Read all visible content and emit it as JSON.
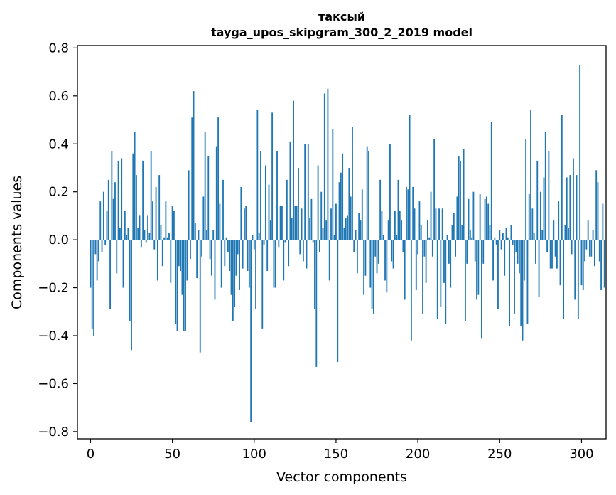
{
  "chart_data": {
    "type": "bar",
    "title": "таксый",
    "subtitle": "tayga_upos_skipgram_300_2_2019 model",
    "xlabel": "Vector components",
    "ylabel": "Components values",
    "xlim": [
      -8,
      315
    ],
    "ylim": [
      -0.83,
      0.81
    ],
    "xticks": [
      0,
      50,
      100,
      150,
      200,
      250,
      300
    ],
    "yticks": [
      -0.8,
      -0.6,
      -0.4,
      -0.2,
      0.0,
      0.2,
      0.4,
      0.6,
      0.8
    ],
    "ytick_labels": [
      "−0.8",
      "−0.6",
      "−0.4",
      "−0.2",
      "0.0",
      "0.2",
      "0.4",
      "0.6",
      "0.8"
    ],
    "xtick_labels": [
      "0",
      "50",
      "100",
      "150",
      "200",
      "250",
      "300"
    ],
    "bar_color": "#1f77b4",
    "values": [
      -0.2,
      -0.37,
      -0.4,
      -0.06,
      -0.17,
      -0.09,
      0.16,
      -0.05,
      0.2,
      -0.02,
      0.12,
      0.25,
      -0.29,
      0.37,
      0.17,
      0.24,
      -0.14,
      0.33,
      0.05,
      0.34,
      -0.2,
      0.12,
      0.02,
      0.05,
      -0.34,
      -0.46,
      0.36,
      0.45,
      0.27,
      0.05,
      0.1,
      -0.03,
      0.33,
      0.04,
      -0.01,
      0.1,
      0.03,
      0.37,
      0.16,
      -0.04,
      0.22,
      -0.17,
      0.27,
      0.06,
      -0.11,
      0.01,
      0.16,
      0.01,
      0.03,
      -0.18,
      0.14,
      0.12,
      -0.35,
      -0.38,
      -0.11,
      -0.13,
      -0.23,
      -0.38,
      -0.38,
      -0.17,
      0.29,
      -0.08,
      0.51,
      0.62,
      0.07,
      -0.16,
      0.04,
      -0.47,
      -0.07,
      0.18,
      0.45,
      0.04,
      0.35,
      -0.08,
      -0.15,
      0.04,
      -0.25,
      0.39,
      0.51,
      0.15,
      -0.2,
      0.25,
      -0.11,
      0.01,
      -0.05,
      -0.13,
      -0.23,
      -0.34,
      -0.28,
      -0.15,
      -0.06,
      -0.21,
      0.22,
      -0.12,
      0.13,
      0.14,
      -0.13,
      -0.2,
      -0.76,
      0.02,
      -0.04,
      -0.29,
      0.54,
      0.03,
      0.37,
      -0.37,
      -0.02,
      0.31,
      -0.13,
      0.23,
      0.08,
      0.53,
      -0.2,
      -0.2,
      0.37,
      -0.03,
      0.14,
      0.14,
      -0.17,
      -0.01,
      0.25,
      -0.11,
      0.41,
      0.09,
      0.58,
      0.14,
      0.14,
      0.3,
      -0.06,
      0.13,
      -0.09,
      0.4,
      -0.12,
      0.4,
      0.09,
      0.17,
      -0.01,
      -0.29,
      -0.53,
      0.31,
      -0.05,
      0.2,
      0.05,
      0.61,
      0.08,
      0.63,
      -0.17,
      0.13,
      0.46,
      0.02,
      0.15,
      -0.51,
      0.24,
      0.28,
      0.36,
      0.05,
      0.09,
      0.1,
      0.3,
      0.18,
      0.47,
      -0.05,
      0.04,
      -0.14,
      0.11,
      0.08,
      0.21,
      -0.23,
      -0.15,
      0.39,
      0.37,
      -0.2,
      -0.29,
      -0.31,
      -0.07,
      -0.14,
      -0.1,
      0.25,
      0.12,
      0.02,
      -0.17,
      -0.22,
      0.08,
      0.4,
      -0.09,
      -0.12,
      0.12,
      0.02,
      0.25,
      0.12,
      0.08,
      -0.05,
      -0.25,
      0.22,
      0.21,
      0.52,
      -0.42,
      0.22,
      0.13,
      -0.21,
      -0.06,
      0.16,
      0.06,
      -0.31,
      -0.07,
      -0.18,
      0.08,
      0.01,
      0.2,
      -0.07,
      0.42,
      0.13,
      -0.33,
      0.13,
      -0.28,
      0.13,
      -0.18,
      -0.35,
      0.02,
      -0.1,
      -0.2,
      0.06,
      0.11,
      -0.07,
      0.18,
      0.35,
      0.33,
      0.06,
      0.38,
      -0.34,
      -0.1,
      0.17,
      0.04,
      0.01,
      0.2,
      -0.09,
      -0.25,
      -0.23,
      0.19,
      -0.41,
      -0.1,
      0.17,
      0.18,
      0.15,
      0.06,
      0.49,
      -0.17,
      0.01,
      -0.02,
      -0.29,
      0.04,
      -0.04,
      0.03,
      -0.15,
      0.05,
      0.01,
      -0.36,
      0.06,
      -0.02,
      -0.31,
      -0.05,
      -0.1,
      -0.14,
      -0.36,
      -0.42,
      -0.17,
      0.42,
      -0.35,
      0.19,
      0.54,
      0.13,
      0.03,
      -0.1,
      0.33,
      -0.24,
      0.2,
      0.04,
      0.26,
      0.45,
      -0.05,
      0.37,
      -0.12,
      -0.12,
      0.08,
      -0.07,
      -0.12,
      0.16,
      -0.19,
      0.52,
      -0.33,
      0.06,
      0.26,
      0.05,
      0.27,
      -0.06,
      0.34,
      -0.25,
      0.27,
      -0.33,
      0.73,
      -0.19,
      -0.21,
      -0.09,
      -0.04,
      0.08,
      -0.07,
      -0.07,
      0.04,
      -0.11,
      0.29,
      0.24,
      -0.09,
      -0.21,
      0.15,
      -0.2
    ]
  }
}
